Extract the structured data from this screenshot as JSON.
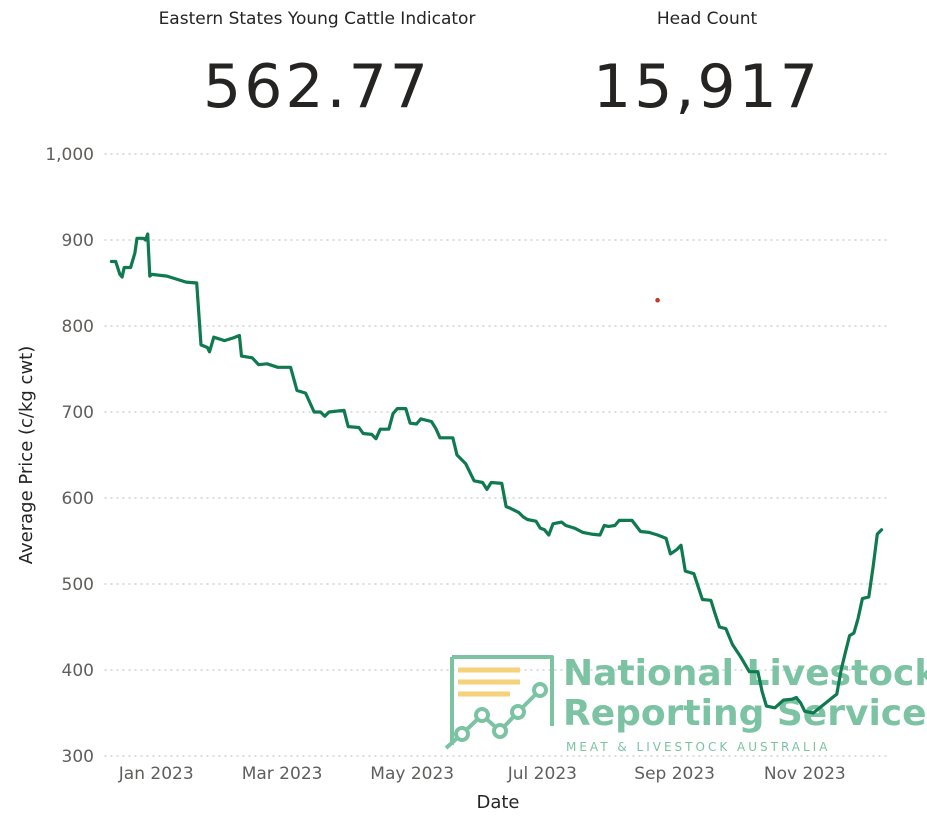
{
  "kpis": {
    "indicator_label": "Eastern States Young Cattle Indicator",
    "indicator_value": "562.77",
    "headcount_label": "Head Count",
    "headcount_value": "15,917"
  },
  "watermark": {
    "line1": "National Livestock",
    "line2": "Reporting Service",
    "subline": "MEAT & LIVESTOCK AUSTRALIA",
    "color": "#7cc3a4",
    "accent": "#f5d27a"
  },
  "chart_data": {
    "type": "line",
    "title": "",
    "xlabel": "Date",
    "ylabel": "Average Price (c/kg cwt)",
    "ylim": [
      300,
      1000
    ],
    "yticks": [
      300,
      400,
      500,
      600,
      700,
      800,
      900,
      1000
    ],
    "ytick_labels": [
      "300",
      "400",
      "500",
      "600",
      "700",
      "800",
      "900",
      "1,000"
    ],
    "xlim": [
      "2022-12-08",
      "2023-12-10"
    ],
    "xticks": [
      "2023-01-01",
      "2023-03-01",
      "2023-05-01",
      "2023-07-01",
      "2023-09-01",
      "2023-11-01"
    ],
    "xtick_labels": [
      "Jan 2023",
      "Mar 2023",
      "May 2023",
      "Jul 2023",
      "Sep 2023",
      "Nov 2023"
    ],
    "grid": true,
    "line_color": "#0f7a4f",
    "outlier_color": "#c0392b",
    "series": [
      {
        "name": "",
        "points": [
          [
            "2022-12-11",
            875
          ],
          [
            "2022-12-13",
            875
          ],
          [
            "2022-12-15",
            860
          ],
          [
            "2022-12-16",
            857
          ],
          [
            "2022-12-17",
            868
          ],
          [
            "2022-12-20",
            868
          ],
          [
            "2022-12-22",
            885
          ],
          [
            "2022-12-23",
            902
          ],
          [
            "2022-12-26",
            902
          ],
          [
            "2022-12-27",
            900
          ],
          [
            "2022-12-28",
            907
          ],
          [
            "2022-12-29",
            858
          ],
          [
            "2022-12-30",
            860
          ],
          [
            "2023-01-06",
            858
          ],
          [
            "2023-01-15",
            851
          ],
          [
            "2023-01-20",
            850
          ],
          [
            "2023-01-22",
            778
          ],
          [
            "2023-01-25",
            775
          ],
          [
            "2023-01-26",
            770
          ],
          [
            "2023-01-28",
            787
          ],
          [
            "2023-02-02",
            783
          ],
          [
            "2023-02-06",
            786
          ],
          [
            "2023-02-09",
            789
          ],
          [
            "2023-02-10",
            765
          ],
          [
            "2023-02-15",
            763
          ],
          [
            "2023-02-18",
            755
          ],
          [
            "2023-02-22",
            756
          ],
          [
            "2023-02-27",
            752
          ],
          [
            "2023-03-05",
            752
          ],
          [
            "2023-03-08",
            725
          ],
          [
            "2023-03-12",
            722
          ],
          [
            "2023-03-16",
            700
          ],
          [
            "2023-03-19",
            700
          ],
          [
            "2023-03-21",
            695
          ],
          [
            "2023-03-23",
            700
          ],
          [
            "2023-03-30",
            702
          ],
          [
            "2023-04-01",
            683
          ],
          [
            "2023-04-06",
            682
          ],
          [
            "2023-04-08",
            675
          ],
          [
            "2023-04-12",
            674
          ],
          [
            "2023-04-14",
            669
          ],
          [
            "2023-04-16",
            680
          ],
          [
            "2023-04-20",
            680
          ],
          [
            "2023-04-22",
            698
          ],
          [
            "2023-04-24",
            704
          ],
          [
            "2023-04-28",
            704
          ],
          [
            "2023-04-30",
            687
          ],
          [
            "2023-05-03",
            686
          ],
          [
            "2023-05-05",
            692
          ],
          [
            "2023-05-10",
            689
          ],
          [
            "2023-05-12",
            681
          ],
          [
            "2023-05-14",
            670
          ],
          [
            "2023-05-20",
            670
          ],
          [
            "2023-05-22",
            650
          ],
          [
            "2023-05-26",
            640
          ],
          [
            "2023-05-30",
            620
          ],
          [
            "2023-06-03",
            618
          ],
          [
            "2023-06-05",
            610
          ],
          [
            "2023-06-07",
            618
          ],
          [
            "2023-06-12",
            617
          ],
          [
            "2023-06-14",
            590
          ],
          [
            "2023-06-16",
            588
          ],
          [
            "2023-06-20",
            583
          ],
          [
            "2023-06-22",
            578
          ],
          [
            "2023-06-24",
            575
          ],
          [
            "2023-06-28",
            573
          ],
          [
            "2023-06-30",
            565
          ],
          [
            "2023-07-02",
            563
          ],
          [
            "2023-07-04",
            557
          ],
          [
            "2023-07-06",
            570
          ],
          [
            "2023-07-10",
            572
          ],
          [
            "2023-07-12",
            568
          ],
          [
            "2023-07-16",
            565
          ],
          [
            "2023-07-20",
            560
          ],
          [
            "2023-07-24",
            558
          ],
          [
            "2023-07-28",
            557
          ],
          [
            "2023-07-30",
            568
          ],
          [
            "2023-08-01",
            567
          ],
          [
            "2023-08-04",
            568
          ],
          [
            "2023-08-06",
            574
          ],
          [
            "2023-08-12",
            574
          ],
          [
            "2023-08-16",
            561
          ],
          [
            "2023-08-20",
            560
          ],
          [
            "2023-08-24",
            557
          ],
          [
            "2023-08-28",
            553
          ],
          [
            "2023-08-30",
            535
          ],
          [
            "2023-09-02",
            540
          ],
          [
            "2023-09-04",
            545
          ],
          [
            "2023-09-06",
            515
          ],
          [
            "2023-09-10",
            512
          ],
          [
            "2023-09-14",
            482
          ],
          [
            "2023-09-18",
            481
          ],
          [
            "2023-09-20",
            465
          ],
          [
            "2023-09-22",
            450
          ],
          [
            "2023-09-25",
            448
          ],
          [
            "2023-09-28",
            430
          ],
          [
            "2023-10-02",
            415
          ],
          [
            "2023-10-06",
            398
          ],
          [
            "2023-10-10",
            398
          ],
          [
            "2023-10-12",
            375
          ],
          [
            "2023-10-14",
            358
          ],
          [
            "2023-10-18",
            356
          ],
          [
            "2023-10-22",
            365
          ],
          [
            "2023-10-26",
            366
          ],
          [
            "2023-10-28",
            368
          ],
          [
            "2023-10-30",
            362
          ],
          [
            "2023-11-01",
            352
          ],
          [
            "2023-11-05",
            350
          ],
          [
            "2023-11-08",
            356
          ],
          [
            "2023-11-10",
            360
          ],
          [
            "2023-11-14",
            368
          ],
          [
            "2023-11-16",
            372
          ],
          [
            "2023-11-18",
            400
          ],
          [
            "2023-11-20",
            420
          ],
          [
            "2023-11-22",
            440
          ],
          [
            "2023-11-24",
            443
          ],
          [
            "2023-11-26",
            460
          ],
          [
            "2023-11-28",
            483
          ],
          [
            "2023-12-01",
            485
          ],
          [
            "2023-12-03",
            520
          ],
          [
            "2023-12-05",
            558
          ],
          [
            "2023-12-07",
            563
          ]
        ]
      }
    ],
    "outliers": [
      [
        "2023-08-24",
        830
      ]
    ]
  }
}
